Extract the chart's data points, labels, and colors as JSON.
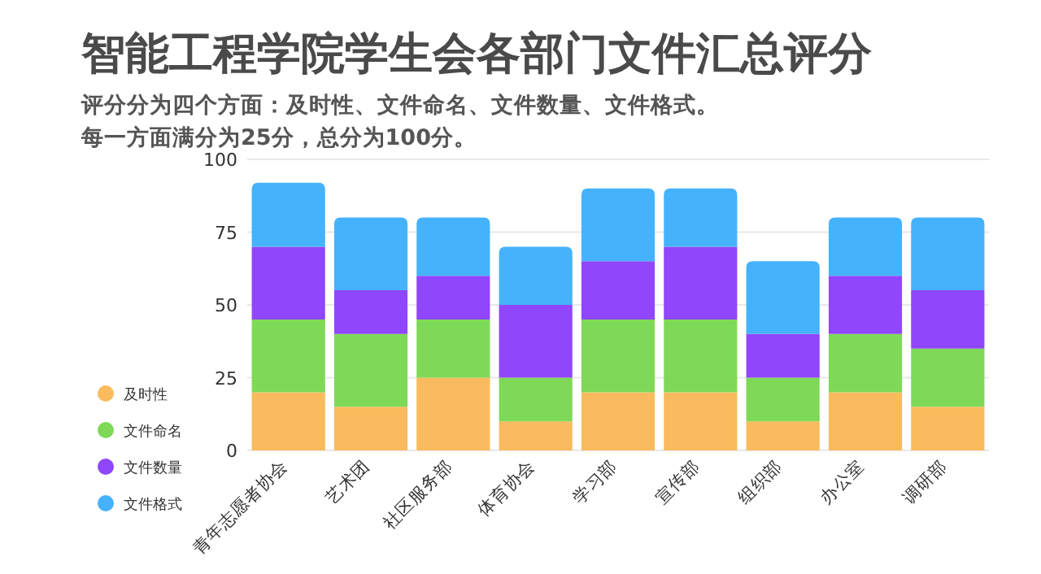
{
  "chart_data": {
    "type": "bar",
    "stacked": true,
    "title": "智能工程学院学生会各部门文件汇总评分",
    "subtitle": "评分分为四个方面：及时性、文件命名、文件数量、文件格式。",
    "annotations": [
      "每一方面满分为25分，总分为100分。"
    ],
    "categories": [
      "青年志愿者协会",
      "艺术团",
      "社区服务部",
      "体育协会",
      "学习部",
      "宣传部",
      "组织部",
      "办公室",
      "调研部"
    ],
    "series": [
      {
        "name": "及时性",
        "color": "#f9bb5d",
        "values": [
          20,
          15,
          25,
          10,
          20,
          20,
          10,
          20,
          15
        ]
      },
      {
        "name": "文件命名",
        "color": "#7ed957",
        "values": [
          25,
          25,
          20,
          15,
          25,
          25,
          15,
          20,
          20
        ]
      },
      {
        "name": "文件数量",
        "color": "#9046fa",
        "values": [
          25,
          15,
          15,
          25,
          20,
          25,
          15,
          20,
          20
        ]
      },
      {
        "name": "文件格式",
        "color": "#45b2fc",
        "values": [
          22,
          25,
          20,
          20,
          25,
          20,
          25,
          20,
          25
        ]
      }
    ],
    "ylim": [
      0,
      100
    ],
    "yticks": [
      0,
      25,
      50,
      75,
      100
    ],
    "grid": "y",
    "legend": "bottom left"
  }
}
